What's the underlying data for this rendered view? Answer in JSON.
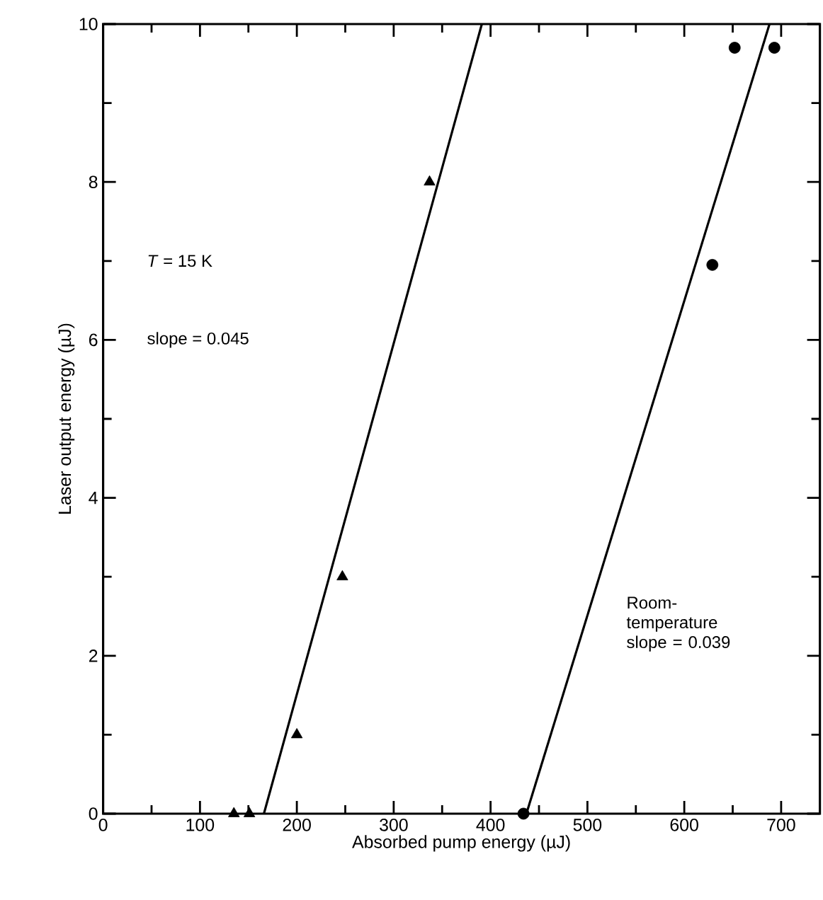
{
  "chart_data": {
    "type": "scatter",
    "xlabel": "Absorbed pump energy (µJ)",
    "ylabel": "Laser output energy (µJ)",
    "xlim": [
      0,
      740
    ],
    "ylim": [
      0,
      10
    ],
    "xticks": [
      0,
      100,
      200,
      300,
      400,
      500,
      600,
      700
    ],
    "yticks": [
      0,
      2,
      4,
      6,
      8,
      10
    ],
    "series": [
      {
        "type": "scatter",
        "marker": "triangle",
        "color": "#000000",
        "x": [
          135,
          151,
          200,
          247,
          337
        ],
        "values": [
          0,
          0,
          1,
          3,
          8
        ]
      },
      {
        "type": "scatter",
        "marker": "circle",
        "color": "#000000",
        "x": [
          434,
          629,
          652,
          693
        ],
        "values": [
          0,
          6.95,
          9.7,
          9.7
        ]
      },
      {
        "type": "line",
        "marker": "none",
        "color": "#000000",
        "x": [
          166,
          391
        ],
        "values": [
          0,
          10
        ]
      },
      {
        "type": "line",
        "marker": "none",
        "color": "#000000",
        "x": [
          437,
          688
        ],
        "values": [
          0,
          10
        ]
      }
    ],
    "annotations": [
      "*T* = 15 K",
      "slope = 0.045",
      "Room-temperature slope = 0.039"
    ]
  }
}
